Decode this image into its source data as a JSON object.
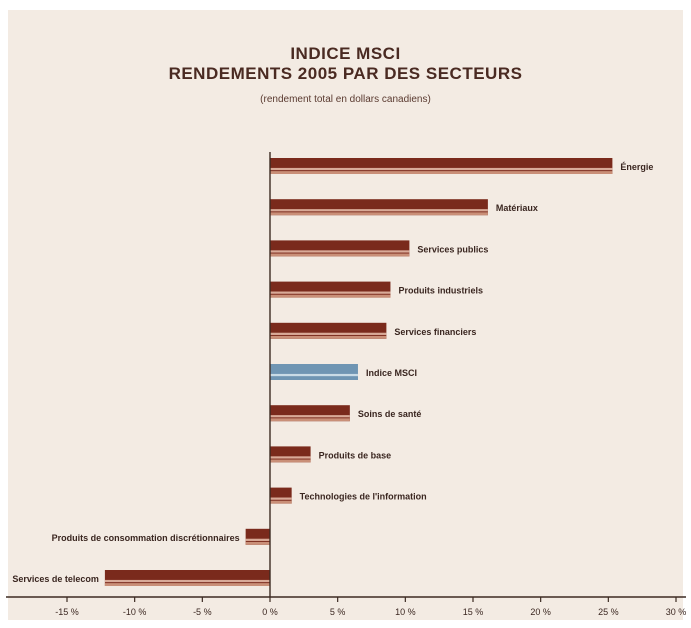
{
  "chart_data": {
    "type": "bar",
    "orientation": "horizontal",
    "title": [
      "INDICE MSCI",
      "RENDEMENTS 2005 PAR DES SECTEURS"
    ],
    "subtitle": "(rendement total en dollars canadiens)",
    "xlabel": "",
    "ylabel": "",
    "xlim": [
      -15,
      30
    ],
    "x_ticks": [
      -15,
      -10,
      -5,
      0,
      5,
      10,
      15,
      20,
      25,
      30
    ],
    "x_tick_labels": [
      "-15 %",
      "-10 %",
      "-5 %",
      "0 %",
      "5 %",
      "10 %",
      "15 %",
      "20 %",
      "25 %",
      "30 %"
    ],
    "grid": false,
    "legend": "none",
    "categories": [
      "Énergie",
      "Matériaux",
      "Services publics",
      "Produits industriels",
      "Services financiers",
      "Indice MSCI",
      "Soins de santé",
      "Produits de base",
      "Technologies de l'information",
      "Produits de consommation discrétionnaires",
      "Services de telecom"
    ],
    "values": [
      25.3,
      16.1,
      10.3,
      8.9,
      8.6,
      6.5,
      5.9,
      3.0,
      1.6,
      -1.8,
      -12.2
    ],
    "highlight_category": "Indice MSCI",
    "colors": {
      "bar": "#7a2a1c",
      "bar_light": "#d9aa98",
      "highlight": "#6f95b3",
      "highlight_light": "#c9dbe6",
      "axis": "#3c2a22",
      "text": "#3a2620"
    }
  }
}
